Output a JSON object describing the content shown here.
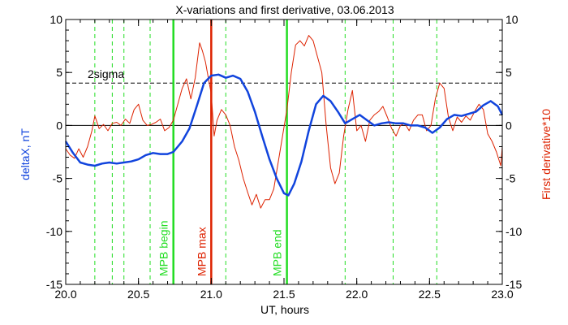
{
  "chart_data": {
    "type": "line",
    "title": "X-variations and first derivative, 03.06.2013",
    "xlabel": "UT, hours",
    "ylabel_left": "deltaX, nT",
    "ylabel_right": "First derivative*10",
    "xlim": [
      20.0,
      23.0
    ],
    "ylim": [
      -15,
      10
    ],
    "xticks": [
      20.0,
      20.5,
      21.0,
      21.5,
      22.0,
      22.5,
      23.0
    ],
    "xtick_labels": [
      "20.0",
      "20.5",
      "21.0",
      "21.5",
      "22.0",
      "22.5",
      "23.0"
    ],
    "yticks": [
      -15,
      -10,
      -5,
      0,
      5,
      10
    ],
    "ytick_labels_left": [
      "-15",
      "-10",
      "-5",
      "0",
      "5",
      "10"
    ],
    "ytick_labels_right": [
      "-15",
      "-10",
      "-5",
      "0",
      "5",
      "10"
    ],
    "sigma_level": 4,
    "sigma_label": "2sigma",
    "green_dashed_lines": [
      20.2,
      20.32,
      20.4,
      20.58,
      21.1,
      21.92,
      22.25,
      22.55
    ],
    "markers": [
      {
        "label": "MPB begin",
        "x": 20.74,
        "color": "#22dd22"
      },
      {
        "label": "MPB max",
        "x": 21.0,
        "color": "#dd2200"
      },
      {
        "label": "MPB end",
        "x": 21.52,
        "color": "#22dd22"
      }
    ],
    "series": [
      {
        "color": "#1144dd",
        "x": [
          20.0,
          20.05,
          20.1,
          20.15,
          20.2,
          20.25,
          20.3,
          20.35,
          20.4,
          20.45,
          20.5,
          20.55,
          20.6,
          20.65,
          20.7,
          20.74,
          20.8,
          20.85,
          20.9,
          20.95,
          21.0,
          21.05,
          21.1,
          21.15,
          21.2,
          21.25,
          21.3,
          21.35,
          21.4,
          21.45,
          21.5,
          21.53,
          21.57,
          21.62,
          21.67,
          21.72,
          21.77,
          21.82,
          21.87,
          21.92,
          21.97,
          22.02,
          22.07,
          22.12,
          22.17,
          22.22,
          22.27,
          22.32,
          22.37,
          22.42,
          22.47,
          22.52,
          22.57,
          22.62,
          22.67,
          22.72,
          22.77,
          22.82,
          22.87,
          22.92,
          22.97,
          23.0
        ],
        "values": [
          -1.5,
          -2.6,
          -3.5,
          -3.7,
          -3.8,
          -3.6,
          -3.5,
          -3.6,
          -3.5,
          -3.4,
          -3.2,
          -2.8,
          -2.6,
          -2.7,
          -2.7,
          -2.5,
          -1.5,
          -0.3,
          1.8,
          4.0,
          4.7,
          4.8,
          4.5,
          4.7,
          4.4,
          3.2,
          1.3,
          -1.0,
          -3.2,
          -5.0,
          -6.4,
          -6.6,
          -5.5,
          -3.4,
          -0.5,
          2.0,
          2.8,
          2.3,
          1.3,
          0.2,
          0.6,
          1.0,
          0.5,
          0.0,
          0.2,
          0.3,
          0.2,
          0.2,
          0.0,
          0.0,
          -0.2,
          -0.7,
          -0.2,
          0.6,
          1.0,
          0.9,
          1.1,
          1.3,
          1.9,
          2.3,
          1.8,
          1.0
        ]
      },
      {
        "color": "#dd2200",
        "x": [
          20.0,
          20.03,
          20.06,
          20.09,
          20.12,
          20.15,
          20.18,
          20.2,
          20.23,
          20.26,
          20.29,
          20.32,
          20.35,
          20.38,
          20.41,
          20.44,
          20.47,
          20.5,
          20.53,
          20.56,
          20.59,
          20.62,
          20.65,
          20.68,
          20.71,
          20.74,
          20.77,
          20.8,
          20.83,
          20.86,
          20.89,
          20.92,
          20.94,
          20.96,
          20.98,
          21.0,
          21.02,
          21.04,
          21.07,
          21.1,
          21.13,
          21.16,
          21.19,
          21.22,
          21.25,
          21.28,
          21.31,
          21.34,
          21.37,
          21.4,
          21.43,
          21.46,
          21.49,
          21.52,
          21.55,
          21.58,
          21.61,
          21.64,
          21.67,
          21.7,
          21.73,
          21.76,
          21.79,
          21.82,
          21.85,
          21.88,
          21.91,
          21.94,
          21.97,
          22.0,
          22.03,
          22.06,
          22.09,
          22.12,
          22.15,
          22.18,
          22.21,
          22.24,
          22.27,
          22.3,
          22.33,
          22.36,
          22.39,
          22.42,
          22.45,
          22.48,
          22.51,
          22.54,
          22.57,
          22.6,
          22.63,
          22.66,
          22.69,
          22.72,
          22.75,
          22.78,
          22.81,
          22.84,
          22.87,
          22.9,
          22.93,
          22.96,
          22.99,
          23.0
        ],
        "values": [
          -2.2,
          -2.8,
          -3.1,
          -2.2,
          -3.0,
          -2.0,
          -0.5,
          0.9,
          -0.3,
          0.1,
          -0.5,
          0.2,
          0.3,
          0.0,
          0.6,
          0.2,
          1.5,
          2.0,
          0.5,
          0.0,
          0.1,
          0.3,
          0.6,
          -0.5,
          -0.2,
          0.5,
          2.0,
          3.5,
          4.4,
          2.5,
          4.5,
          7.8,
          7.0,
          6.0,
          4.5,
          3.0,
          -1.0,
          0.5,
          1.5,
          1.0,
          0.0,
          -2.0,
          -3.3,
          -5.0,
          -6.3,
          -7.5,
          -6.5,
          -7.8,
          -7.0,
          -7.0,
          -6.0,
          -3.5,
          -1.0,
          1.5,
          5.0,
          7.6,
          8.0,
          7.5,
          8.5,
          8.0,
          6.5,
          5.0,
          0.0,
          -4.0,
          -5.5,
          -4.5,
          -1.0,
          1.5,
          3.3,
          -0.5,
          0.0,
          -1.5,
          0.5,
          1.0,
          1.3,
          1.8,
          0.8,
          -0.3,
          -1.0,
          0.0,
          0.2,
          -0.5,
          0.5,
          1.0,
          1.0,
          -0.5,
          0.0,
          2.5,
          4.0,
          3.5,
          0.8,
          -0.5,
          0.8,
          0.3,
          0.9,
          0.5,
          1.3,
          2.0,
          1.5,
          -0.8,
          -1.5,
          -2.5,
          -3.8,
          -2.0
        ]
      }
    ]
  }
}
